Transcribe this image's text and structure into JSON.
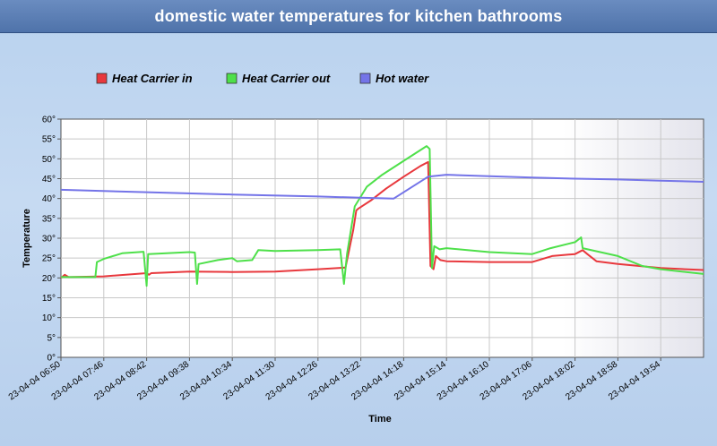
{
  "chart_data": {
    "type": "line",
    "title": "domestic water temperatures for kitchen bathrooms",
    "xlabel": "Time",
    "ylabel": "Temperature",
    "ylim": [
      0,
      60
    ],
    "xlim": [
      "23-04-04 06:50",
      "23-04-04 20:50"
    ],
    "yticks": [
      "0°",
      "5°",
      "10°",
      "15°",
      "20°",
      "25°",
      "30°",
      "35°",
      "40°",
      "45°",
      "50°",
      "55°",
      "60°"
    ],
    "xticks": [
      "23-04-04 06:50",
      "23-04-04 07:46",
      "23-04-04 08:42",
      "23-04-04 09:38",
      "23-04-04 10:34",
      "23-04-04 11:30",
      "23-04-04 12:26",
      "23-04-04 13:22",
      "23-04-04 14:18",
      "23-04-04 15:14",
      "23-04-04 16:10",
      "23-04-04 17:06",
      "23-04-04 18:02",
      "23-04-04 18:58",
      "23-04-04 19:54"
    ],
    "grid": true,
    "legend_position": "top",
    "series": [
      {
        "name": "Heat Carrier in",
        "color": "#e8383d",
        "points": [
          [
            "23-04-04 06:50",
            20.0
          ],
          [
            "23-04-04 06:55",
            20.8
          ],
          [
            "23-04-04 07:00",
            20.2
          ],
          [
            "23-04-04 07:46",
            20.4
          ],
          [
            "23-04-04 08:42",
            21.2
          ],
          [
            "23-04-04 08:45",
            20.8
          ],
          [
            "23-04-04 08:48",
            21.2
          ],
          [
            "23-04-04 09:38",
            21.6
          ],
          [
            "23-04-04 10:34",
            21.5
          ],
          [
            "23-04-04 11:30",
            21.6
          ],
          [
            "23-04-04 12:26",
            22.2
          ],
          [
            "23-04-04 13:02",
            22.6
          ],
          [
            "23-04-04 13:12",
            32.0
          ],
          [
            "23-04-04 13:16",
            37.0
          ],
          [
            "23-04-04 13:19",
            37.5
          ],
          [
            "23-04-04 13:35",
            39.5
          ],
          [
            "23-04-04 13:55",
            42.5
          ],
          [
            "23-04-04 14:18",
            45.5
          ],
          [
            "23-04-04 14:40",
            48.2
          ],
          [
            "23-04-04 14:50",
            49.2
          ],
          [
            "23-04-04 14:53",
            23.0
          ],
          [
            "23-04-04 14:57",
            22.2
          ],
          [
            "23-04-04 15:00",
            25.5
          ],
          [
            "23-04-04 15:06",
            24.5
          ],
          [
            "23-04-04 15:14",
            24.2
          ],
          [
            "23-04-04 16:10",
            24.0
          ],
          [
            "23-04-04 17:06",
            24.0
          ],
          [
            "23-04-04 17:32",
            25.5
          ],
          [
            "23-04-04 18:02",
            26.0
          ],
          [
            "23-04-04 18:12",
            27.0
          ],
          [
            "23-04-04 18:18",
            26.0
          ],
          [
            "23-04-04 18:30",
            24.2
          ],
          [
            "23-04-04 18:58",
            23.5
          ],
          [
            "23-04-04 19:54",
            22.5
          ],
          [
            "23-04-04 20:50",
            22.0
          ]
        ]
      },
      {
        "name": "Heat Carrier out",
        "color": "#4ee04a",
        "points": [
          [
            "23-04-04 06:50",
            20.2
          ],
          [
            "23-04-04 07:35",
            20.2
          ],
          [
            "23-04-04 07:37",
            24.0
          ],
          [
            "23-04-04 07:46",
            24.8
          ],
          [
            "23-04-04 08:10",
            26.2
          ],
          [
            "23-04-04 08:38",
            26.6
          ],
          [
            "23-04-04 08:42",
            18.0
          ],
          [
            "23-04-04 08:44",
            26.0
          ],
          [
            "23-04-04 09:38",
            26.5
          ],
          [
            "23-04-04 09:45",
            26.4
          ],
          [
            "23-04-04 09:48",
            18.5
          ],
          [
            "23-04-04 09:50",
            23.5
          ],
          [
            "23-04-04 10:15",
            24.5
          ],
          [
            "23-04-04 10:34",
            25.0
          ],
          [
            "23-04-04 10:40",
            24.2
          ],
          [
            "23-04-04 11:00",
            24.5
          ],
          [
            "23-04-04 11:08",
            27.0
          ],
          [
            "23-04-04 11:30",
            26.8
          ],
          [
            "23-04-04 12:26",
            27.0
          ],
          [
            "23-04-04 12:55",
            27.2
          ],
          [
            "23-04-04 13:00",
            18.5
          ],
          [
            "23-04-04 13:04",
            26.0
          ],
          [
            "23-04-04 13:14",
            38.0
          ],
          [
            "23-04-04 13:22",
            40.5
          ],
          [
            "23-04-04 13:30",
            43.0
          ],
          [
            "23-04-04 13:50",
            46.0
          ],
          [
            "23-04-04 14:18",
            49.5
          ],
          [
            "23-04-04 14:48",
            53.2
          ],
          [
            "23-04-04 14:52",
            52.5
          ],
          [
            "23-04-04 14:55",
            22.5
          ],
          [
            "23-04-04 14:58",
            28.0
          ],
          [
            "23-04-04 15:05",
            27.2
          ],
          [
            "23-04-04 15:14",
            27.5
          ],
          [
            "23-04-04 16:10",
            26.5
          ],
          [
            "23-04-04 17:06",
            26.0
          ],
          [
            "23-04-04 17:30",
            27.5
          ],
          [
            "23-04-04 18:02",
            29.0
          ],
          [
            "23-04-04 18:10",
            30.2
          ],
          [
            "23-04-04 18:12",
            27.5
          ],
          [
            "23-04-04 18:58",
            25.5
          ],
          [
            "23-04-04 19:30",
            23.0
          ],
          [
            "23-04-04 19:54",
            22.2
          ],
          [
            "23-04-04 20:50",
            21.0
          ]
        ]
      },
      {
        "name": "Hot water",
        "color": "#7474e8",
        "points": [
          [
            "23-04-04 06:50",
            42.2
          ],
          [
            "23-04-04 08:42",
            41.6
          ],
          [
            "23-04-04 10:34",
            41.0
          ],
          [
            "23-04-04 12:26",
            40.5
          ],
          [
            "23-04-04 13:22",
            40.2
          ],
          [
            "23-04-04 14:05",
            40.0
          ],
          [
            "23-04-04 14:50",
            45.5
          ],
          [
            "23-04-04 15:14",
            46.0
          ],
          [
            "23-04-04 16:10",
            45.6
          ],
          [
            "23-04-04 17:06",
            45.3
          ],
          [
            "23-04-04 18:02",
            45.0
          ],
          [
            "23-04-04 18:58",
            44.8
          ],
          [
            "23-04-04 19:54",
            44.5
          ],
          [
            "23-04-04 20:50",
            44.2
          ]
        ]
      }
    ]
  }
}
